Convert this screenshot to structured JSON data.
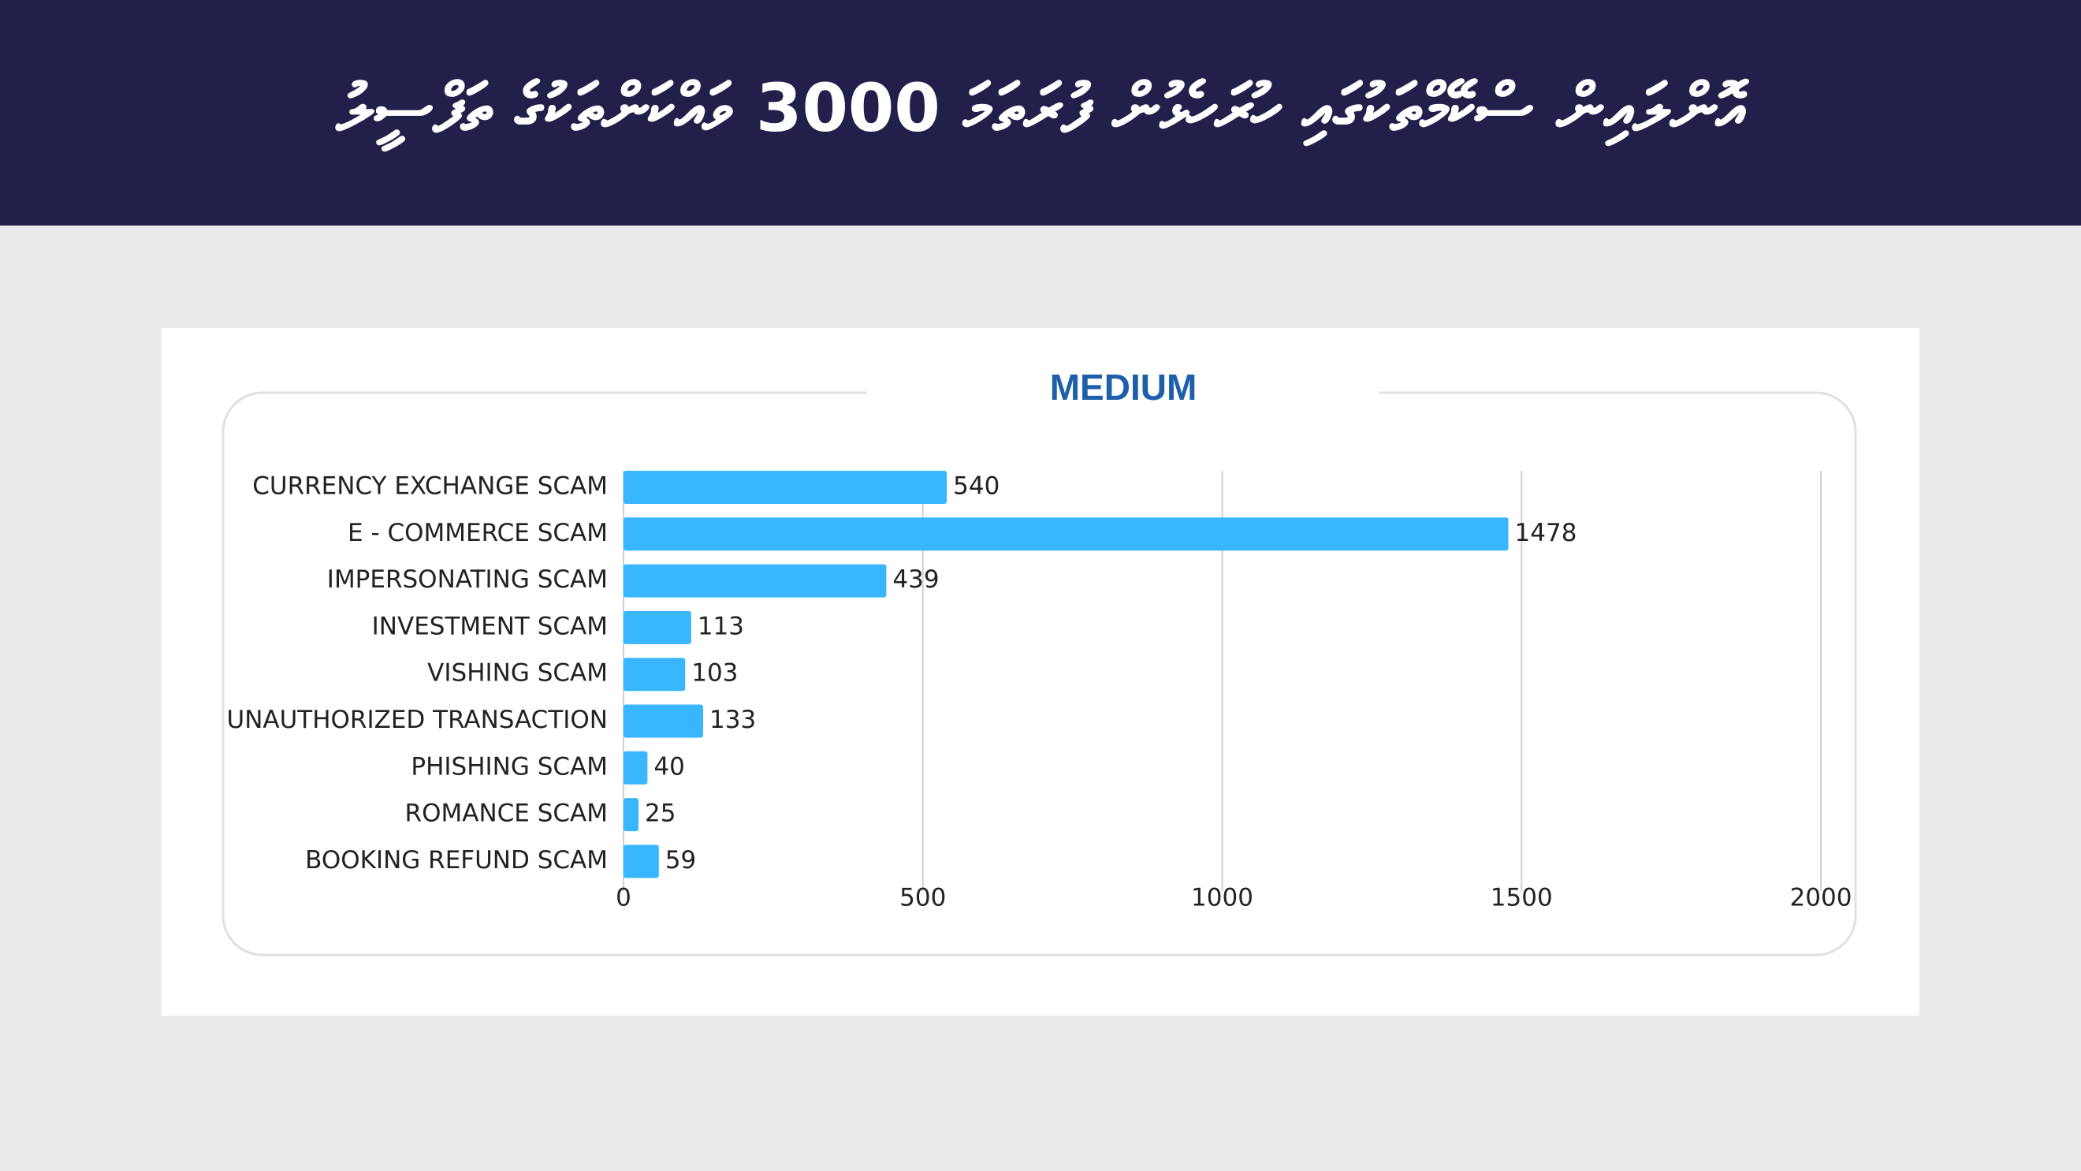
{
  "header": {
    "title": "އޮންލައިން ސްކޭމްތަކުގައި ހުރަހެޅުން ފުރަތަމަ 3000 ވައްކަންތަކުގެ ތަފްސީލު"
  },
  "chart_data": {
    "type": "bar",
    "orientation": "horizontal",
    "title": "MEDIUM",
    "categories": [
      "CURRENCY EXCHANGE SCAM",
      "E - COMMERCE SCAM",
      "IMPERSONATING SCAM",
      "INVESTMENT SCAM",
      "VISHING SCAM",
      "UNAUTHORIZED TRANSACTION",
      "PHISHING SCAM",
      "ROMANCE SCAM",
      "BOOKING REFUND SCAM"
    ],
    "values": [
      540,
      1478,
      439,
      113,
      103,
      133,
      40,
      25,
      59
    ],
    "color": "#38b6ff",
    "xlim": [
      0,
      2000
    ],
    "xticks": [
      0,
      500,
      1000,
      1500,
      2000
    ],
    "grid": true
  }
}
